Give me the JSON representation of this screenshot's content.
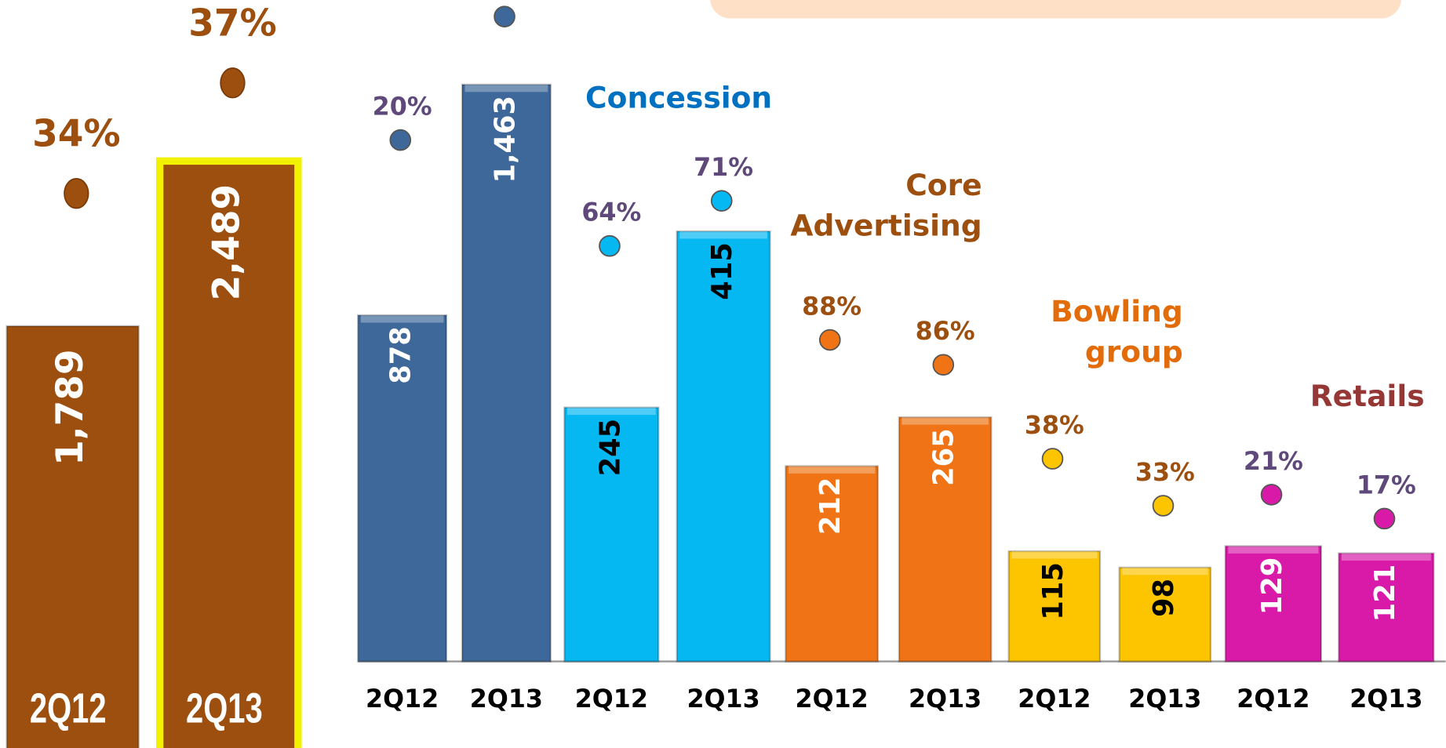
{
  "chart_data": {
    "type": "bar",
    "totals": {
      "categories": [
        "2Q12",
        "2Q13"
      ],
      "values": [
        1789,
        2489
      ],
      "value_labels": [
        "1,789",
        "2,489"
      ],
      "shares": [
        34,
        37
      ],
      "share_labels": [
        "34%",
        "37%"
      ],
      "color": "#9c4f0e"
    },
    "groups": [
      {
        "name": [],
        "color": "#3d6899",
        "categories": [
          "2Q12",
          "2Q13"
        ],
        "values": [
          878,
          1463
        ],
        "value_labels": [
          "878",
          "1,463"
        ],
        "shares": [
          20,
          null
        ],
        "share_labels": [
          "20%",
          null
        ]
      },
      {
        "name": [
          "Concession"
        ],
        "color": "#05b8f2",
        "categories": [
          "2Q12",
          "2Q13"
        ],
        "values": [
          245,
          415
        ],
        "shares": [
          64,
          71
        ],
        "share_labels": [
          "64%",
          "71%"
        ]
      },
      {
        "name": [
          "Core",
          "Advertising"
        ],
        "color": "#f07415",
        "categories": [
          "2Q12",
          "2Q13"
        ],
        "values": [
          212,
          265
        ],
        "shares": [
          88,
          86
        ],
        "share_labels": [
          "88%",
          "86%"
        ]
      },
      {
        "name": [
          "Bowling",
          "group"
        ],
        "color": "#fcc500",
        "categories": [
          "2Q12",
          "2Q13"
        ],
        "values": [
          115,
          98
        ],
        "shares": [
          38,
          33
        ],
        "share_labels": [
          "38%",
          "33%"
        ]
      },
      {
        "name": [
          "Retails"
        ],
        "color": "#d91aa8",
        "categories": [
          "2Q12",
          "2Q13"
        ],
        "values": [
          129,
          121
        ],
        "shares": [
          21,
          17
        ],
        "share_labels": [
          "21%",
          "17%"
        ]
      }
    ]
  }
}
